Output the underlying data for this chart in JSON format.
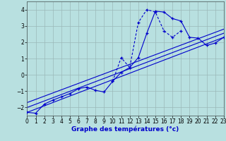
{
  "title": "Graphe des températures (°c)",
  "background_color": "#b8e0e0",
  "grid_color": "#9ab8b8",
  "line_color": "#0000cc",
  "xlim": [
    0,
    23
  ],
  "ylim": [
    -2.5,
    4.5
  ],
  "xticks": [
    0,
    1,
    2,
    3,
    4,
    5,
    6,
    7,
    8,
    9,
    10,
    11,
    12,
    13,
    14,
    15,
    16,
    17,
    18,
    19,
    20,
    21,
    22,
    23
  ],
  "yticks": [
    -2,
    -1,
    0,
    1,
    2,
    3,
    4
  ],
  "curve_solid_x": [
    0,
    1,
    2,
    3,
    4,
    5,
    6,
    7,
    8,
    9,
    10,
    11,
    12,
    13,
    14,
    15,
    16,
    17,
    18,
    19,
    20,
    21,
    22,
    23
  ],
  "curve_solid_y": [
    -2.3,
    -2.35,
    -1.8,
    -1.55,
    -1.35,
    -1.15,
    -0.85,
    -0.75,
    -0.95,
    -1.05,
    -0.4,
    0.15,
    0.45,
    1.05,
    2.55,
    3.9,
    3.85,
    3.45,
    3.3,
    2.3,
    2.25,
    1.8,
    1.95,
    2.3
  ],
  "curve_dashed_x": [
    10,
    11,
    12,
    13,
    14,
    15,
    16,
    17,
    18
  ],
  "curve_dashed_y": [
    -0.4,
    1.05,
    0.45,
    3.2,
    4.0,
    3.85,
    2.7,
    2.3,
    2.7
  ],
  "line1_x": [
    0,
    23
  ],
  "line1_y": [
    -2.3,
    2.3
  ],
  "line2_x": [
    0,
    23
  ],
  "line2_y": [
    -2.0,
    2.55
  ],
  "line3_x": [
    0,
    23
  ],
  "line3_y": [
    -1.7,
    2.8
  ],
  "tick_fontsize": 5.5,
  "xlabel_fontsize": 6.5
}
